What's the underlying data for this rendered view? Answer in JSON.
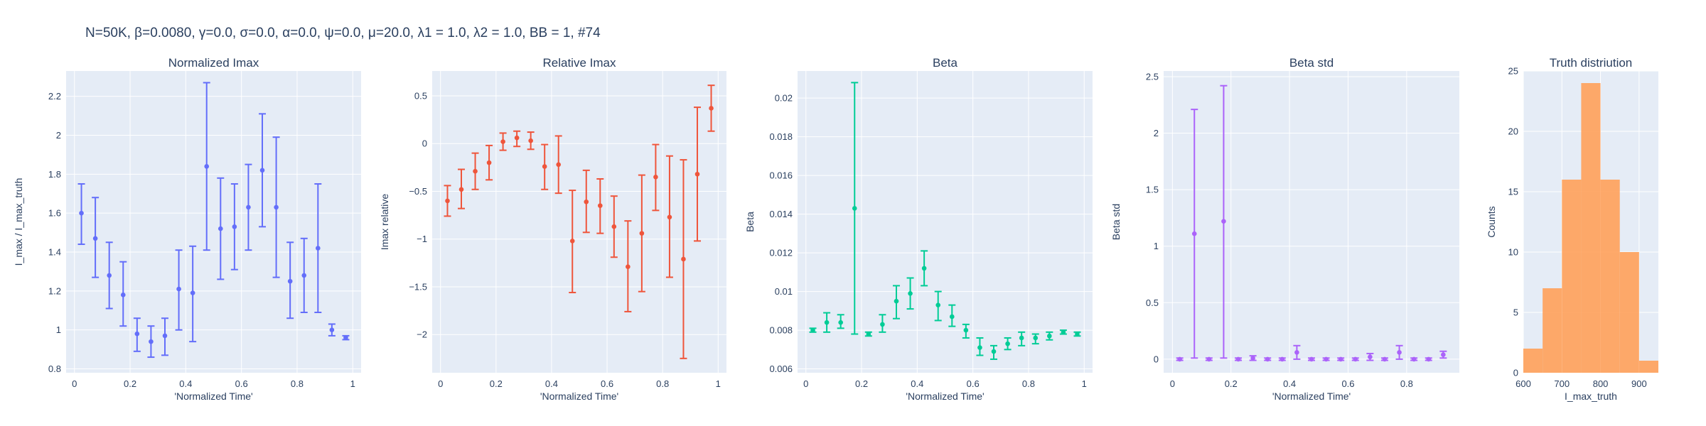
{
  "figure": {
    "title": "N=50K, β=0.0080, γ=0.0, σ=0.0,  α=0.0, ψ=0.0, μ=20.0, λ1 = 1.0, λ2 = 1.0, BB = 1, #74"
  },
  "colors": {
    "background": "#ffffff",
    "plot_bg": "#E5ECF6",
    "grid": "#ffffff",
    "text": "#2a3f5f",
    "series_blue": "#636EFA",
    "series_red": "#EF553B",
    "series_green": "#00CC96",
    "series_purple": "#AB63FA",
    "series_orange": "#FFA15A"
  },
  "chart_data": [
    {
      "type": "scatter",
      "title": "Normalized Imax",
      "xlabel": "'Normalized Time'",
      "ylabel": "I_max / I_max_truth",
      "xlim": [
        -0.03,
        1.03
      ],
      "ylim": [
        0.78,
        2.33
      ],
      "xticks": [
        0,
        0.2,
        0.4,
        0.6,
        0.8,
        1
      ],
      "xtick_labels": [
        "0",
        "0.2",
        "0.4",
        "0.6",
        "0.8",
        "1"
      ],
      "yticks": [
        0.8,
        1,
        1.2,
        1.4,
        1.6,
        1.8,
        2,
        2.2
      ],
      "ytick_labels": [
        "0.8",
        "1",
        "1.2",
        "1.4",
        "1.6",
        "1.8",
        "2",
        "2.2"
      ],
      "grid": true,
      "color": "series_blue",
      "points": [
        {
          "x": 0.025,
          "y": 1.6,
          "lo": 1.44,
          "hi": 1.75
        },
        {
          "x": 0.075,
          "y": 1.47,
          "lo": 1.27,
          "hi": 1.68
        },
        {
          "x": 0.125,
          "y": 1.28,
          "lo": 1.11,
          "hi": 1.45
        },
        {
          "x": 0.175,
          "y": 1.18,
          "lo": 1.02,
          "hi": 1.35
        },
        {
          "x": 0.225,
          "y": 0.98,
          "lo": 0.89,
          "hi": 1.06
        },
        {
          "x": 0.275,
          "y": 0.94,
          "lo": 0.86,
          "hi": 1.02
        },
        {
          "x": 0.325,
          "y": 0.97,
          "lo": 0.87,
          "hi": 1.06
        },
        {
          "x": 0.375,
          "y": 1.21,
          "lo": 1.0,
          "hi": 1.41
        },
        {
          "x": 0.425,
          "y": 1.19,
          "lo": 0.94,
          "hi": 1.43
        },
        {
          "x": 0.475,
          "y": 1.84,
          "lo": 1.41,
          "hi": 2.27
        },
        {
          "x": 0.525,
          "y": 1.52,
          "lo": 1.26,
          "hi": 1.78
        },
        {
          "x": 0.575,
          "y": 1.53,
          "lo": 1.31,
          "hi": 1.75
        },
        {
          "x": 0.625,
          "y": 1.63,
          "lo": 1.41,
          "hi": 1.85
        },
        {
          "x": 0.675,
          "y": 1.82,
          "lo": 1.53,
          "hi": 2.11
        },
        {
          "x": 0.725,
          "y": 1.63,
          "lo": 1.27,
          "hi": 1.99
        },
        {
          "x": 0.775,
          "y": 1.25,
          "lo": 1.06,
          "hi": 1.45
        },
        {
          "x": 0.825,
          "y": 1.28,
          "lo": 1.09,
          "hi": 1.47
        },
        {
          "x": 0.875,
          "y": 1.42,
          "lo": 1.09,
          "hi": 1.75
        },
        {
          "x": 0.925,
          "y": 1.0,
          "lo": 0.97,
          "hi": 1.03
        },
        {
          "x": 0.975,
          "y": 0.96,
          "lo": 0.95,
          "hi": 0.97
        }
      ]
    },
    {
      "type": "scatter",
      "title": "Relative Imax",
      "xlabel": "'Normalized Time'",
      "ylabel": "Imax relative",
      "xlim": [
        -0.03,
        1.03
      ],
      "ylim": [
        -2.4,
        0.76
      ],
      "xticks": [
        0,
        0.2,
        0.4,
        0.6,
        0.8,
        1
      ],
      "xtick_labels": [
        "0",
        "0.2",
        "0.4",
        "0.6",
        "0.8",
        "1"
      ],
      "yticks": [
        -2,
        -1.5,
        -1,
        -0.5,
        0,
        0.5
      ],
      "ytick_labels": [
        "−2",
        "−1.5",
        "−1",
        "−0.5",
        "0",
        "0.5"
      ],
      "grid": true,
      "color": "series_red",
      "points": [
        {
          "x": 0.025,
          "y": -0.6,
          "lo": -0.76,
          "hi": -0.44
        },
        {
          "x": 0.075,
          "y": -0.48,
          "lo": -0.68,
          "hi": -0.27
        },
        {
          "x": 0.125,
          "y": -0.29,
          "lo": -0.48,
          "hi": -0.1
        },
        {
          "x": 0.175,
          "y": -0.2,
          "lo": -0.38,
          "hi": -0.02
        },
        {
          "x": 0.225,
          "y": 0.02,
          "lo": -0.07,
          "hi": 0.11
        },
        {
          "x": 0.275,
          "y": 0.06,
          "lo": -0.03,
          "hi": 0.13
        },
        {
          "x": 0.325,
          "y": 0.03,
          "lo": -0.06,
          "hi": 0.12
        },
        {
          "x": 0.375,
          "y": -0.24,
          "lo": -0.48,
          "hi": -0.01
        },
        {
          "x": 0.425,
          "y": -0.22,
          "lo": -0.52,
          "hi": 0.08
        },
        {
          "x": 0.475,
          "y": -1.02,
          "lo": -1.56,
          "hi": -0.49
        },
        {
          "x": 0.525,
          "y": -0.61,
          "lo": -0.93,
          "hi": -0.28
        },
        {
          "x": 0.575,
          "y": -0.65,
          "lo": -0.94,
          "hi": -0.37
        },
        {
          "x": 0.625,
          "y": -0.87,
          "lo": -1.19,
          "hi": -0.55
        },
        {
          "x": 0.675,
          "y": -1.29,
          "lo": -1.76,
          "hi": -0.81
        },
        {
          "x": 0.725,
          "y": -0.94,
          "lo": -1.55,
          "hi": -0.33
        },
        {
          "x": 0.775,
          "y": -0.35,
          "lo": -0.7,
          "hi": -0.01
        },
        {
          "x": 0.825,
          "y": -0.77,
          "lo": -1.4,
          "hi": -0.13
        },
        {
          "x": 0.875,
          "y": -1.21,
          "lo": -2.25,
          "hi": -0.17
        },
        {
          "x": 0.925,
          "y": -0.32,
          "lo": -1.02,
          "hi": 0.38
        },
        {
          "x": 0.975,
          "y": 0.37,
          "lo": 0.13,
          "hi": 0.61
        }
      ]
    },
    {
      "type": "scatter",
      "title": "Beta",
      "xlabel": "'Normalized Time'",
      "ylabel": "Beta",
      "xlim": [
        -0.03,
        1.03
      ],
      "ylim": [
        0.0058,
        0.0214
      ],
      "xticks": [
        0,
        0.2,
        0.4,
        0.6,
        0.8,
        1
      ],
      "xtick_labels": [
        "0",
        "0.2",
        "0.4",
        "0.6",
        "0.8",
        "1"
      ],
      "yticks": [
        0.006,
        0.008,
        0.01,
        0.012,
        0.014,
        0.016,
        0.018,
        0.02
      ],
      "ytick_labels": [
        "0.006",
        "0.008",
        "0.01",
        "0.012",
        "0.014",
        "0.016",
        "0.018",
        "0.02"
      ],
      "grid": true,
      "color": "series_green",
      "points": [
        {
          "x": 0.025,
          "y": 0.008,
          "lo": 0.0079,
          "hi": 0.0081
        },
        {
          "x": 0.075,
          "y": 0.0084,
          "lo": 0.0079,
          "hi": 0.0089
        },
        {
          "x": 0.125,
          "y": 0.0084,
          "lo": 0.0081,
          "hi": 0.0088
        },
        {
          "x": 0.175,
          "y": 0.0143,
          "lo": 0.0078,
          "hi": 0.0208
        },
        {
          "x": 0.225,
          "y": 0.0078,
          "lo": 0.0077,
          "hi": 0.0079
        },
        {
          "x": 0.275,
          "y": 0.0083,
          "lo": 0.0079,
          "hi": 0.0088
        },
        {
          "x": 0.325,
          "y": 0.0095,
          "lo": 0.0086,
          "hi": 0.0103
        },
        {
          "x": 0.375,
          "y": 0.0099,
          "lo": 0.0091,
          "hi": 0.0107
        },
        {
          "x": 0.425,
          "y": 0.0112,
          "lo": 0.0103,
          "hi": 0.0121
        },
        {
          "x": 0.475,
          "y": 0.0093,
          "lo": 0.0085,
          "hi": 0.01
        },
        {
          "x": 0.525,
          "y": 0.0087,
          "lo": 0.0082,
          "hi": 0.0093
        },
        {
          "x": 0.575,
          "y": 0.008,
          "lo": 0.0076,
          "hi": 0.0083
        },
        {
          "x": 0.625,
          "y": 0.0071,
          "lo": 0.0067,
          "hi": 0.0076
        },
        {
          "x": 0.675,
          "y": 0.0069,
          "lo": 0.0065,
          "hi": 0.0072
        },
        {
          "x": 0.725,
          "y": 0.0073,
          "lo": 0.007,
          "hi": 0.0076
        },
        {
          "x": 0.775,
          "y": 0.0076,
          "lo": 0.0072,
          "hi": 0.0079
        },
        {
          "x": 0.825,
          "y": 0.0076,
          "lo": 0.0073,
          "hi": 0.0078
        },
        {
          "x": 0.875,
          "y": 0.0077,
          "lo": 0.0075,
          "hi": 0.0079
        },
        {
          "x": 0.925,
          "y": 0.0079,
          "lo": 0.0078,
          "hi": 0.008
        },
        {
          "x": 0.975,
          "y": 0.0078,
          "lo": 0.0077,
          "hi": 0.0079
        }
      ]
    },
    {
      "type": "scatter",
      "title": "Beta std",
      "xlabel": "'Normalized Time'",
      "ylabel": "Beta std",
      "xlim": [
        -0.03,
        0.98
      ],
      "ylim": [
        -0.12,
        2.55
      ],
      "xticks": [
        0,
        0.2,
        0.4,
        0.6,
        0.8
      ],
      "xtick_labels": [
        "0",
        "0.2",
        "0.4",
        "0.6",
        "0.8"
      ],
      "yticks": [
        0,
        0.5,
        1,
        1.5,
        2,
        2.5
      ],
      "ytick_labels": [
        "0",
        "0.5",
        "1",
        "1.5",
        "2",
        "2.5"
      ],
      "grid": true,
      "color": "series_purple",
      "points": [
        {
          "x": 0.025,
          "y": 0.0,
          "lo": -0.01,
          "hi": 0.01
        },
        {
          "x": 0.075,
          "y": 1.11,
          "lo": 0.01,
          "hi": 2.21
        },
        {
          "x": 0.125,
          "y": 0.0,
          "lo": -0.01,
          "hi": 0.01
        },
        {
          "x": 0.175,
          "y": 1.22,
          "lo": 0.01,
          "hi": 2.42
        },
        {
          "x": 0.225,
          "y": 0.0,
          "lo": -0.01,
          "hi": 0.01
        },
        {
          "x": 0.275,
          "y": 0.01,
          "lo": -0.01,
          "hi": 0.03
        },
        {
          "x": 0.325,
          "y": 0.0,
          "lo": -0.01,
          "hi": 0.01
        },
        {
          "x": 0.375,
          "y": 0.0,
          "lo": -0.01,
          "hi": 0.01
        },
        {
          "x": 0.425,
          "y": 0.06,
          "lo": 0.0,
          "hi": 0.12
        },
        {
          "x": 0.475,
          "y": 0.0,
          "lo": -0.01,
          "hi": 0.01
        },
        {
          "x": 0.525,
          "y": 0.0,
          "lo": -0.01,
          "hi": 0.01
        },
        {
          "x": 0.575,
          "y": 0.0,
          "lo": -0.01,
          "hi": 0.01
        },
        {
          "x": 0.625,
          "y": 0.0,
          "lo": -0.01,
          "hi": 0.01
        },
        {
          "x": 0.675,
          "y": 0.02,
          "lo": -0.01,
          "hi": 0.05
        },
        {
          "x": 0.725,
          "y": 0.0,
          "lo": -0.01,
          "hi": 0.01
        },
        {
          "x": 0.775,
          "y": 0.06,
          "lo": 0.0,
          "hi": 0.12
        },
        {
          "x": 0.825,
          "y": 0.0,
          "lo": -0.01,
          "hi": 0.01
        },
        {
          "x": 0.875,
          "y": 0.0,
          "lo": -0.01,
          "hi": 0.01
        },
        {
          "x": 0.925,
          "y": 0.04,
          "lo": 0.01,
          "hi": 0.07
        }
      ]
    },
    {
      "type": "bar",
      "title": "Truth distriution",
      "xlabel": "I_max_truth",
      "ylabel": "Counts",
      "xlim": [
        600,
        950
      ],
      "ylim": [
        0,
        25
      ],
      "xticks": [
        600,
        700,
        800,
        900
      ],
      "xtick_labels": [
        "600",
        "700",
        "800",
        "900"
      ],
      "yticks": [
        0,
        5,
        10,
        15,
        20,
        25
      ],
      "ytick_labels": [
        "0",
        "5",
        "10",
        "15",
        "20",
        "25"
      ],
      "grid": true,
      "color": "series_orange",
      "bins": [
        {
          "x0": 600,
          "x1": 650,
          "count": 2
        },
        {
          "x0": 650,
          "x1": 700,
          "count": 7
        },
        {
          "x0": 700,
          "x1": 750,
          "count": 16
        },
        {
          "x0": 750,
          "x1": 800,
          "count": 24
        },
        {
          "x0": 800,
          "x1": 850,
          "count": 16
        },
        {
          "x0": 850,
          "x1": 900,
          "count": 10
        },
        {
          "x0": 900,
          "x1": 950,
          "count": 1
        }
      ]
    }
  ]
}
